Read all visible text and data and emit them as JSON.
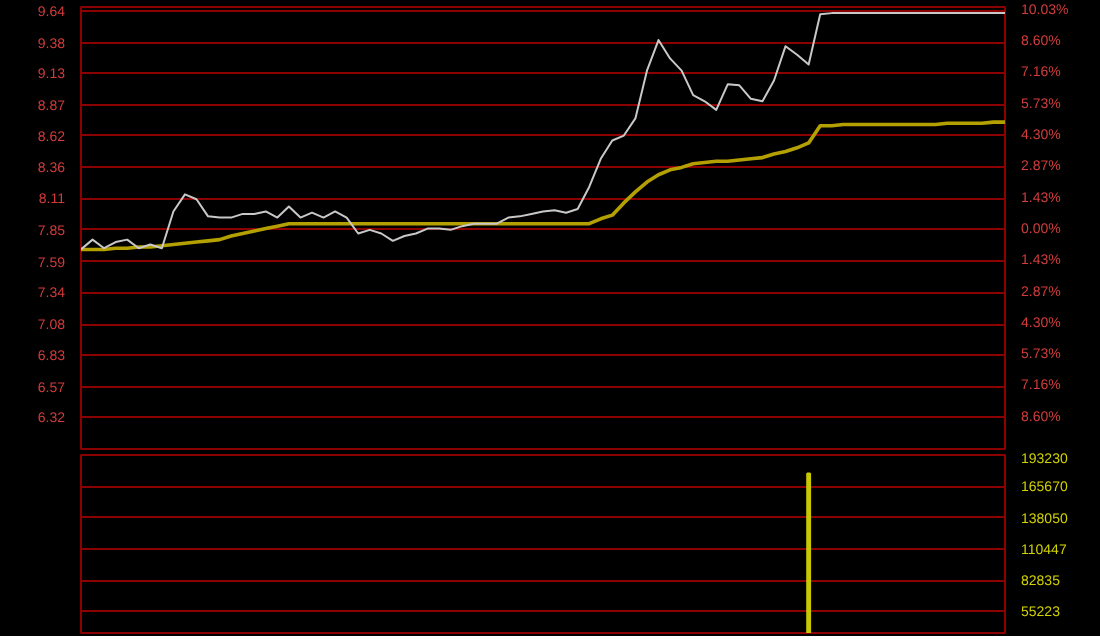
{
  "chart_data": [
    {
      "type": "line",
      "categories": [
        null,
        null,
        null,
        null,
        null,
        null,
        null,
        null,
        null,
        null,
        null,
        null,
        null,
        null,
        null,
        null,
        null,
        null,
        null,
        null,
        null,
        null,
        null,
        null,
        null,
        null,
        null,
        null,
        null,
        null,
        null,
        null,
        null,
        null,
        null,
        null,
        null,
        null,
        null,
        null,
        null,
        null,
        null,
        null,
        null,
        null,
        null,
        null,
        null,
        null,
        null,
        null,
        null,
        null,
        null,
        null,
        null,
        null,
        null,
        null,
        null,
        null,
        null,
        null,
        null,
        null,
        null,
        null,
        null,
        null,
        null,
        null,
        null,
        null,
        null,
        null,
        null,
        null,
        null,
        null,
        null
      ],
      "tick_labels": "y",
      "grid": "y",
      "ylim": [
        6.06,
        9.67
      ],
      "yticks": [
        9.64,
        9.38,
        9.13,
        8.87,
        8.62,
        8.36,
        8.11,
        7.85,
        7.59,
        7.34,
        7.08,
        6.83,
        6.57,
        6.32
      ],
      "y2lim": [
        -10.03,
        10.2
      ],
      "y2ticks": [
        {
          "value": 10.03,
          "label": "10.03%"
        },
        {
          "value": 8.6,
          "label": "8.60%"
        },
        {
          "value": 7.16,
          "label": "7.16%"
        },
        {
          "value": 5.73,
          "label": "5.73%"
        },
        {
          "value": 4.3,
          "label": "4.30%"
        },
        {
          "value": 2.87,
          "label": "2.87%"
        },
        {
          "value": 1.43,
          "label": "1.43%"
        },
        {
          "value": 0,
          "label": "0.00%"
        },
        {
          "value": -1.43,
          "label": "1.43%"
        },
        {
          "value": -2.87,
          "label": "2.87%"
        },
        {
          "value": -4.3,
          "label": "4.30%"
        },
        {
          "value": -5.73,
          "label": "5.73%"
        },
        {
          "value": -7.16,
          "label": "7.16%"
        },
        {
          "value": -8.6,
          "label": "8.60%"
        }
      ],
      "series": [
        {
          "color": "#c8c8c8",
          "values": [
            7.69,
            7.77,
            7.7,
            7.75,
            7.77,
            7.7,
            7.73,
            7.7,
            8.0,
            8.14,
            8.1,
            7.96,
            7.95,
            7.95,
            7.98,
            7.98,
            8.0,
            7.95,
            8.04,
            7.95,
            7.99,
            7.95,
            8.0,
            7.95,
            7.82,
            7.85,
            7.82,
            7.76,
            7.8,
            7.82,
            7.86,
            7.86,
            7.85,
            7.88,
            7.9,
            7.9,
            7.9,
            7.95,
            7.96,
            7.98,
            8.0,
            8.01,
            7.99,
            8.02,
            8.2,
            8.43,
            8.58,
            8.62,
            8.76,
            9.15,
            9.4,
            9.25,
            9.15,
            8.95,
            8.9,
            8.83,
            9.04,
            9.03,
            8.92,
            8.9,
            9.07,
            9.35,
            9.28,
            9.2,
            9.61,
            9.62,
            9.62,
            9.62,
            9.62,
            9.62,
            9.62,
            9.62,
            9.62,
            9.62,
            9.62,
            9.62,
            9.62,
            9.62,
            9.62,
            9.62,
            9.62
          ]
        },
        {
          "color": "#b4a000",
          "values": [
            7.69,
            7.69,
            7.69,
            7.7,
            7.7,
            7.71,
            7.71,
            7.72,
            7.73,
            7.74,
            7.75,
            7.76,
            7.77,
            7.8,
            7.82,
            7.84,
            7.86,
            7.88,
            7.9,
            7.9,
            7.9,
            7.9,
            7.9,
            7.9,
            7.9,
            7.9,
            7.9,
            7.9,
            7.9,
            7.9,
            7.9,
            7.9,
            7.9,
            7.9,
            7.9,
            7.9,
            7.9,
            7.9,
            7.9,
            7.9,
            7.9,
            7.9,
            7.9,
            7.9,
            7.9,
            7.94,
            7.97,
            8.07,
            8.16,
            8.24,
            8.3,
            8.34,
            8.36,
            8.39,
            8.4,
            8.41,
            8.41,
            8.42,
            8.43,
            8.44,
            8.47,
            8.49,
            8.52,
            8.56,
            8.7,
            8.7,
            8.71,
            8.71,
            8.71,
            8.71,
            8.71,
            8.71,
            8.71,
            8.71,
            8.71,
            8.72,
            8.72,
            8.72,
            8.72,
            8.73,
            8.73
          ]
        }
      ]
    },
    {
      "type": "bar",
      "categories": [
        null,
        null,
        null,
        null,
        null,
        null,
        null,
        null,
        null,
        null,
        null,
        null,
        null,
        null,
        null,
        null,
        null,
        null,
        null,
        null,
        null,
        null,
        null,
        null,
        null,
        null,
        null,
        null,
        null,
        null,
        null,
        null,
        null,
        null,
        null,
        null,
        null,
        null,
        null,
        null,
        null,
        null,
        null,
        null,
        null,
        null,
        null,
        null,
        null,
        null,
        null,
        null,
        null,
        null,
        null,
        null,
        null,
        null,
        null,
        null,
        null,
        null,
        null,
        null,
        null,
        null,
        null,
        null,
        null,
        null,
        null,
        null,
        null,
        null,
        null,
        null,
        null,
        null,
        null,
        null,
        null
      ],
      "grid": "y",
      "ylim": [
        36200,
        193230
      ],
      "yticks": [
        193230,
        165670,
        138050,
        110447,
        82835,
        55223
      ],
      "tick_labels": "y",
      "series": [
        {
          "color": "#c8c800",
          "values": [
            null,
            null,
            null,
            null,
            null,
            null,
            null,
            null,
            null,
            null,
            null,
            null,
            null,
            null,
            null,
            null,
            null,
            null,
            null,
            null,
            null,
            null,
            null,
            null,
            null,
            null,
            null,
            null,
            null,
            null,
            null,
            null,
            null,
            null,
            null,
            null,
            null,
            null,
            null,
            null,
            null,
            null,
            null,
            null,
            null,
            null,
            null,
            null,
            null,
            null,
            null,
            null,
            null,
            null,
            null,
            null,
            null,
            null,
            null,
            null,
            null,
            null,
            null,
            177000,
            null,
            null,
            null,
            null,
            null,
            null,
            null,
            null,
            null,
            null,
            null,
            null,
            null,
            null,
            null,
            null,
            null
          ]
        }
      ]
    }
  ]
}
